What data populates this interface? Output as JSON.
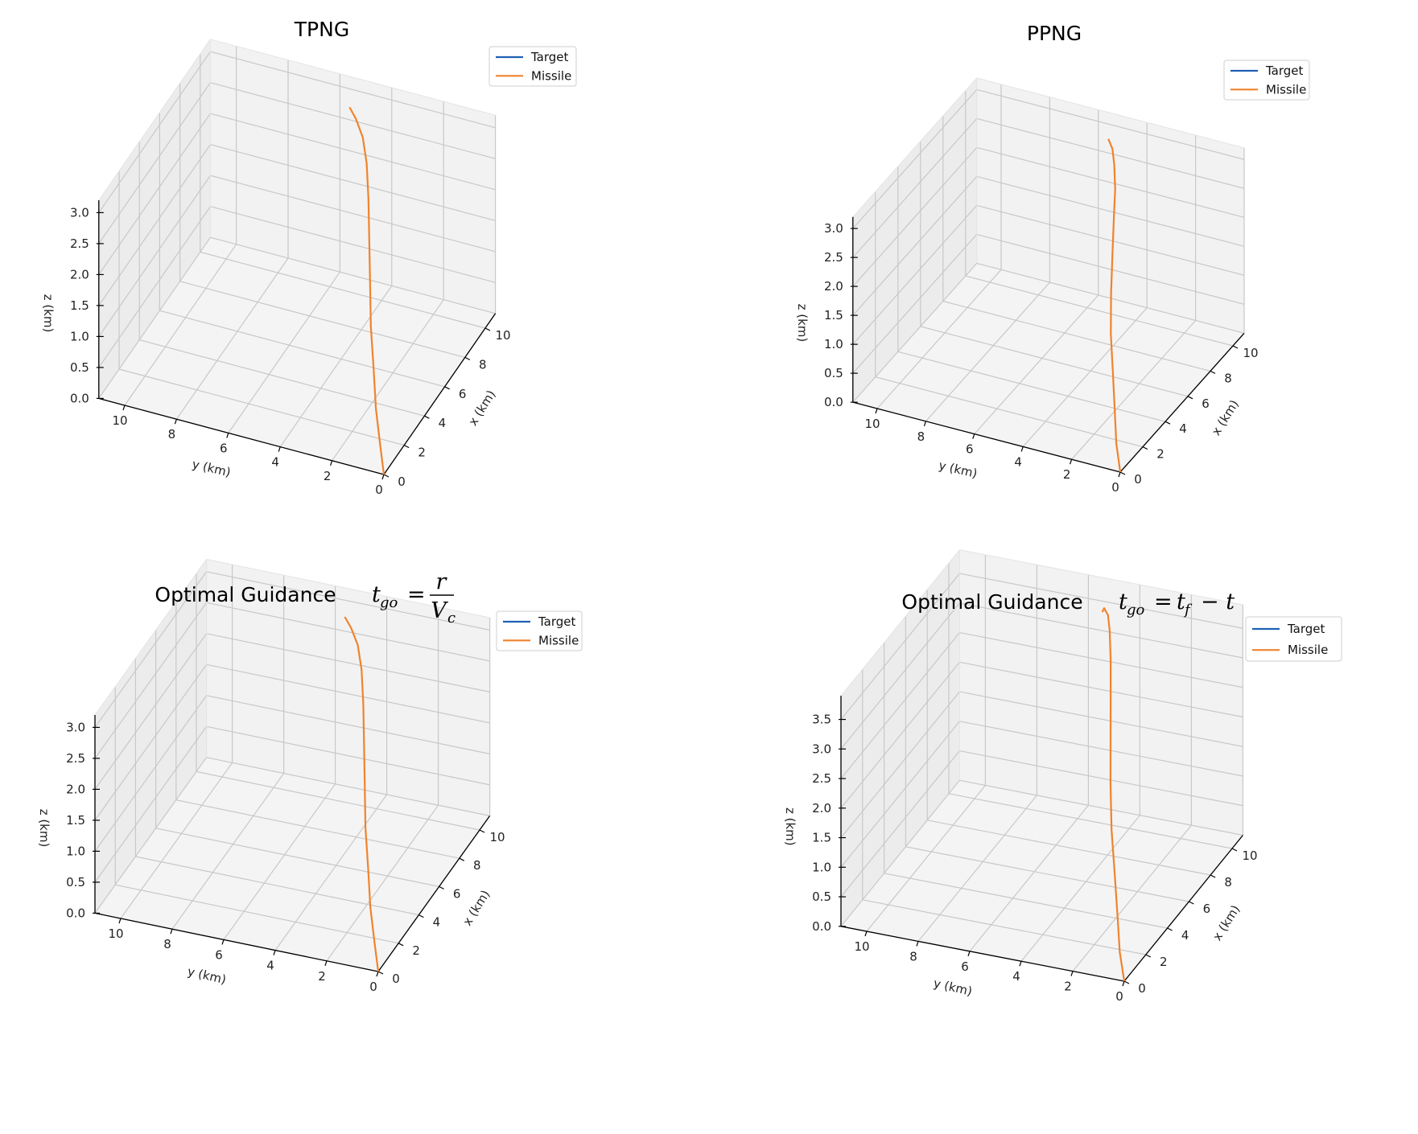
{
  "figure": {
    "colors": {
      "target": "#1f5fb4",
      "missile": "#f0832d",
      "pane_left": "#ececec",
      "pane_back": "#f2f2f2",
      "pane_floor": "#f4f4f4",
      "grid": "#c8c8c8"
    }
  },
  "chart_data": [
    {
      "type": "line",
      "title": "TPNG",
      "xlabel": "x (km)",
      "ylabel": "y (km)",
      "zlabel": "z (km)",
      "xlim": [
        0,
        11
      ],
      "ylim": [
        0,
        11
      ],
      "zlim": [
        0,
        3.2
      ],
      "xticks": [
        0,
        2,
        4,
        6,
        8,
        10
      ],
      "yticks": [
        0,
        2,
        4,
        6,
        8,
        10
      ],
      "zticks": [
        "0.0",
        "0.5",
        "1.0",
        "1.5",
        "2.0",
        "2.5",
        "3.0"
      ],
      "legend": [
        "Target",
        "Missile"
      ],
      "legend_position": "upper-right",
      "grid": true,
      "series": [
        {
          "name": "Target",
          "x": [],
          "y": [],
          "z": []
        },
        {
          "name": "Missile",
          "x": [
            0,
            0.4,
            1.0,
            1.8,
            2.8,
            4.0,
            5.2,
            6.4,
            7.5,
            8.4,
            9.0,
            9.4
          ],
          "y": [
            0,
            0.3,
            0.7,
            1.1,
            1.6,
            2.1,
            2.6,
            3.1,
            3.6,
            4.1,
            4.6,
            5.0
          ],
          "z": [
            0,
            0.35,
            0.75,
            1.15,
            1.55,
            1.95,
            2.3,
            2.6,
            2.85,
            3.0,
            3.1,
            3.15
          ]
        }
      ]
    },
    {
      "type": "line",
      "title": "PPNG",
      "xlabel": "x (km)",
      "ylabel": "y (km)",
      "zlabel": "z (km)",
      "xlim": [
        0,
        11
      ],
      "ylim": [
        0,
        11
      ],
      "zlim": [
        0,
        3.2
      ],
      "xticks": [
        0,
        2,
        4,
        6,
        8,
        10
      ],
      "yticks": [
        0,
        2,
        4,
        6,
        8,
        10
      ],
      "zticks": [
        "0.0",
        "0.5",
        "1.0",
        "1.5",
        "2.0",
        "2.5",
        "3.0"
      ],
      "legend": [
        "Target",
        "Missile"
      ],
      "legend_position": "upper-right",
      "grid": true,
      "series": [
        {
          "name": "Target",
          "x": [],
          "y": [],
          "z": []
        },
        {
          "name": "Missile",
          "x": [
            0,
            0.3,
            0.8,
            1.5,
            2.4,
            3.5,
            4.7,
            5.9,
            7.1,
            8.1,
            8.8,
            9.3
          ],
          "y": [
            0,
            0.3,
            0.6,
            1.0,
            1.5,
            2.0,
            2.5,
            3.0,
            3.5,
            4.0,
            4.4,
            4.8
          ],
          "z": [
            0,
            0.4,
            0.85,
            1.3,
            1.7,
            2.1,
            2.45,
            2.75,
            2.95,
            3.1,
            3.18,
            3.2
          ]
        }
      ]
    },
    {
      "type": "line",
      "title": "Optimal Guidance",
      "title_formula": {
        "lhs": "t",
        "lhs_sub": "go",
        "eq": "=",
        "num": "r",
        "den": "V",
        "den_sub": "c"
      },
      "xlabel": "x (km)",
      "ylabel": "y (km)",
      "zlabel": "z (km)",
      "xlim": [
        0,
        11
      ],
      "ylim": [
        0,
        11
      ],
      "zlim": [
        0,
        3.2
      ],
      "xticks": [
        0,
        2,
        4,
        6,
        8,
        10
      ],
      "yticks": [
        0,
        2,
        4,
        6,
        8,
        10
      ],
      "zticks": [
        "0.0",
        "0.5",
        "1.0",
        "1.5",
        "2.0",
        "2.5",
        "3.0"
      ],
      "legend": [
        "Target",
        "Missile"
      ],
      "legend_position": "upper-right",
      "grid": true,
      "series": [
        {
          "name": "Target",
          "x": [],
          "y": [],
          "z": []
        },
        {
          "name": "Missile",
          "x": [
            0,
            0.4,
            1.0,
            1.8,
            2.8,
            4.0,
            5.2,
            6.4,
            7.5,
            8.4,
            9.0,
            9.4
          ],
          "y": [
            0,
            0.3,
            0.7,
            1.1,
            1.6,
            2.1,
            2.6,
            3.1,
            3.6,
            4.1,
            4.6,
            5.0
          ],
          "z": [
            0,
            0.35,
            0.75,
            1.15,
            1.55,
            1.95,
            2.3,
            2.6,
            2.85,
            3.0,
            3.1,
            3.15
          ]
        }
      ]
    },
    {
      "type": "line",
      "title": "Optimal Guidance",
      "title_formula": {
        "lhs": "t",
        "lhs_sub": "go",
        "eq": "=",
        "rhs1": "t",
        "rhs1_sub": "f",
        "rhs2": "− t"
      },
      "xlabel": "x (km)",
      "ylabel": "y (km)",
      "zlabel": "z (km)",
      "xlim": [
        0,
        11
      ],
      "ylim": [
        0,
        11
      ],
      "zlim": [
        0,
        3.9
      ],
      "xticks": [
        0,
        2,
        4,
        6,
        8,
        10
      ],
      "yticks": [
        0,
        2,
        4,
        6,
        8,
        10
      ],
      "zticks": [
        "0.0",
        "0.5",
        "1.0",
        "1.5",
        "2.0",
        "2.5",
        "3.0",
        "3.5"
      ],
      "legend": [
        "Target",
        "Missile"
      ],
      "legend_position": "upper-right",
      "grid": true,
      "series": [
        {
          "name": "Target",
          "x": [],
          "y": [],
          "z": []
        },
        {
          "name": "Missile",
          "x": [
            0,
            0.3,
            0.8,
            1.5,
            2.4,
            3.5,
            4.7,
            5.9,
            7.1,
            8.2,
            9.0,
            9.6,
            9.9
          ],
          "y": [
            0,
            0.3,
            0.6,
            1.0,
            1.5,
            2.0,
            2.5,
            3.0,
            3.5,
            4.0,
            4.4,
            4.8,
            5.0
          ],
          "z": [
            0,
            0.4,
            0.9,
            1.4,
            1.9,
            2.4,
            2.85,
            3.25,
            3.55,
            3.75,
            3.8,
            3.75,
            3.6
          ]
        }
      ]
    }
  ]
}
